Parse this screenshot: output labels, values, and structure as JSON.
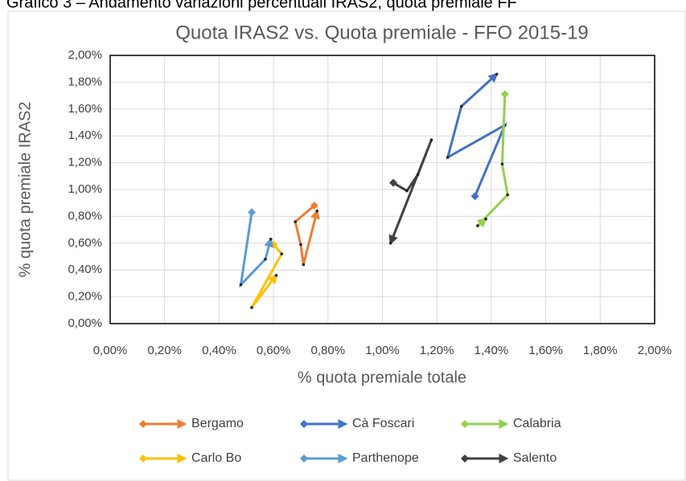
{
  "heading": "Grafico 3 – Andamento variazioni percentuali IRAS2, quota premiale FF",
  "chart_data": {
    "type": "scatter-line",
    "title": "Quota IRAS2 vs. Quota premiale - FFO 2015-19",
    "x_label": "% quota premiale totale",
    "y_label": "% quota premiale IRAS2",
    "xlim": [
      0,
      2
    ],
    "ylim": [
      0,
      2
    ],
    "grid": true,
    "legend": "bottom",
    "xticks": [
      {
        "value": 0,
        "label": "0,00%"
      },
      {
        "value": 0.2,
        "label": "0,20%"
      },
      {
        "value": 0.4,
        "label": "0,40%"
      },
      {
        "value": 0.6,
        "label": "0,60%"
      },
      {
        "value": 0.8,
        "label": "0,80%"
      },
      {
        "value": 1,
        "label": "1,00%"
      },
      {
        "value": 1.2,
        "label": "1,20%"
      },
      {
        "value": 1.4,
        "label": "1,40%"
      },
      {
        "value": 1.6,
        "label": "1,60%"
      },
      {
        "value": 1.8,
        "label": "1,80%"
      },
      {
        "value": 2,
        "label": "2,00%"
      }
    ],
    "yticks": [
      {
        "value": 0,
        "label": "0,00%"
      },
      {
        "value": 0.2,
        "label": "0,20%"
      },
      {
        "value": 0.4,
        "label": "0,40%"
      },
      {
        "value": 0.6,
        "label": "0,60%"
      },
      {
        "value": 0.8,
        "label": "0,80%"
      },
      {
        "value": 1,
        "label": "1,00%"
      },
      {
        "value": 1.2,
        "label": "1,20%"
      },
      {
        "value": 1.4,
        "label": "1,40%"
      },
      {
        "value": 1.6,
        "label": "1,60%"
      },
      {
        "value": 1.8,
        "label": "1,80%"
      },
      {
        "value": 2,
        "label": "2,00%"
      }
    ],
    "series": [
      {
        "name": "Bergamo",
        "color": "#ed7d31",
        "x": [
          0.75,
          0.68,
          0.7,
          0.71,
          0.76
        ],
        "values": [
          0.88,
          0.76,
          0.59,
          0.44,
          0.84
        ]
      },
      {
        "name": "Cà Foscari",
        "color": "#4472c4",
        "x": [
          1.34,
          1.45,
          1.24,
          1.29,
          1.42
        ],
        "values": [
          0.95,
          1.48,
          1.24,
          1.62,
          1.86
        ]
      },
      {
        "name": "Calabria",
        "color": "#92d050",
        "x": [
          1.45,
          1.44,
          1.46,
          1.35,
          1.38
        ],
        "values": [
          1.71,
          1.19,
          0.96,
          0.73,
          0.78
        ]
      },
      {
        "name": "Carlo Bo",
        "color": "#ffc000",
        "x": [
          0.6,
          0.63,
          0.52,
          0.61
        ],
        "values": [
          0.59,
          0.52,
          0.12,
          0.36
        ]
      },
      {
        "name": "Parthenope",
        "color": "#5b9bd5",
        "x": [
          0.52,
          0.48,
          0.57,
          0.59
        ],
        "values": [
          0.83,
          0.29,
          0.48,
          0.63
        ]
      },
      {
        "name": "Salento",
        "color": "#404040",
        "x": [
          1.04,
          1.09,
          1.13,
          1.18,
          1.03
        ],
        "values": [
          1.05,
          0.99,
          1.11,
          1.37,
          0.6
        ]
      }
    ]
  }
}
